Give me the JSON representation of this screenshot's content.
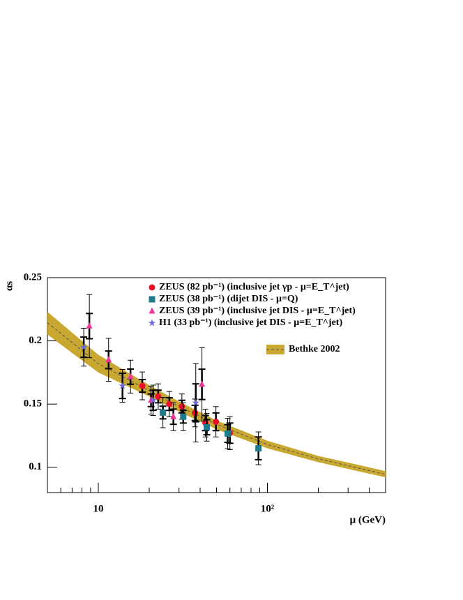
{
  "chart_data": {
    "type": "scatter",
    "xlabel": "μ (GeV)",
    "ylabel": "αs",
    "xscale": "log",
    "xlim": [
      5,
      500
    ],
    "ylim": [
      0.08,
      0.25
    ],
    "xticks": [
      10,
      {
        "value": 100,
        "label": "10²"
      }
    ],
    "yticks": [
      0.1,
      0.15,
      0.2,
      0.25
    ],
    "band": {
      "name": "Bethke 2002",
      "color": "#c9a832",
      "x": [
        5,
        10,
        20,
        30,
        50,
        100,
        200,
        500
      ],
      "values": [
        0.2144,
        0.182,
        0.1606,
        0.148,
        0.134,
        0.118,
        0.1067,
        0.0944
      ],
      "lower": [
        0.205,
        0.175,
        0.156,
        0.144,
        0.13,
        0.115,
        0.104,
        0.092
      ],
      "upper": [
        0.223,
        0.189,
        0.165,
        0.152,
        0.137,
        0.121,
        0.109,
        0.097
      ]
    },
    "series": [
      {
        "name": "ZEUS (82 pb⁻¹) (inclusive jet γp - μ=E_T^jet)",
        "color": "#e8102a",
        "marker": "circle",
        "x": [
          18.2,
          22.6,
          26.3,
          31.2,
          37.3,
          43,
          49.6,
          60
        ],
        "values": [
          0.1644,
          0.156,
          0.15,
          0.148,
          0.143,
          0.135,
          0.136,
          0.127
        ],
        "stat_errors": [
          0.005,
          0.005,
          0.005,
          0.005,
          0.006,
          0.006,
          0.007,
          0.008
        ],
        "errors": [
          0.011,
          0.01,
          0.01,
          0.01,
          0.011,
          0.011,
          0.012,
          0.013
        ]
      },
      {
        "name": "ZEUS (38 pb⁻¹) (dijet DIS - μ=Q)",
        "color": "#1f7a8c",
        "marker": "square",
        "x": [
          24.1,
          31.8,
          43.8,
          58.2,
          88.5
        ],
        "values": [
          0.1433,
          0.14,
          0.1317,
          0.1267,
          0.115
        ],
        "stat_errors": [
          0.005,
          0.005,
          0.006,
          0.007,
          0.009
        ],
        "errors": [
          0.012,
          0.011,
          0.011,
          0.012,
          0.013
        ]
      },
      {
        "name": "ZEUS (39 pb⁻¹) (inclusive jet DIS - μ=E_T^jet)",
        "color": "#f0359c",
        "marker": "triangle",
        "x": [
          8.85,
          11.5,
          15.5,
          20.5,
          27.8,
          41
        ],
        "values": [
          0.2117,
          0.185,
          0.1717,
          0.153,
          0.14,
          0.1656
        ],
        "stat_errors": [
          0.01,
          0.007,
          0.006,
          0.005,
          0.006,
          0.012
        ],
        "errors": [
          0.025,
          0.017,
          0.013,
          0.011,
          0.011,
          0.029
        ]
      },
      {
        "name": "H1      (33 pb⁻¹) (inclusive jet DIS - μ=E_T^jet)",
        "color": "#6a6ad8",
        "marker": "star",
        "x": [
          8.2,
          13.9,
          21.1,
          37.7
        ],
        "values": [
          0.195,
          0.1644,
          0.153,
          0.151
        ],
        "stat_errors": [
          0.008,
          0.01,
          0.008,
          0.015
        ],
        "errors": [
          0.015,
          0.013,
          0.012,
          0.031
        ]
      }
    ]
  }
}
